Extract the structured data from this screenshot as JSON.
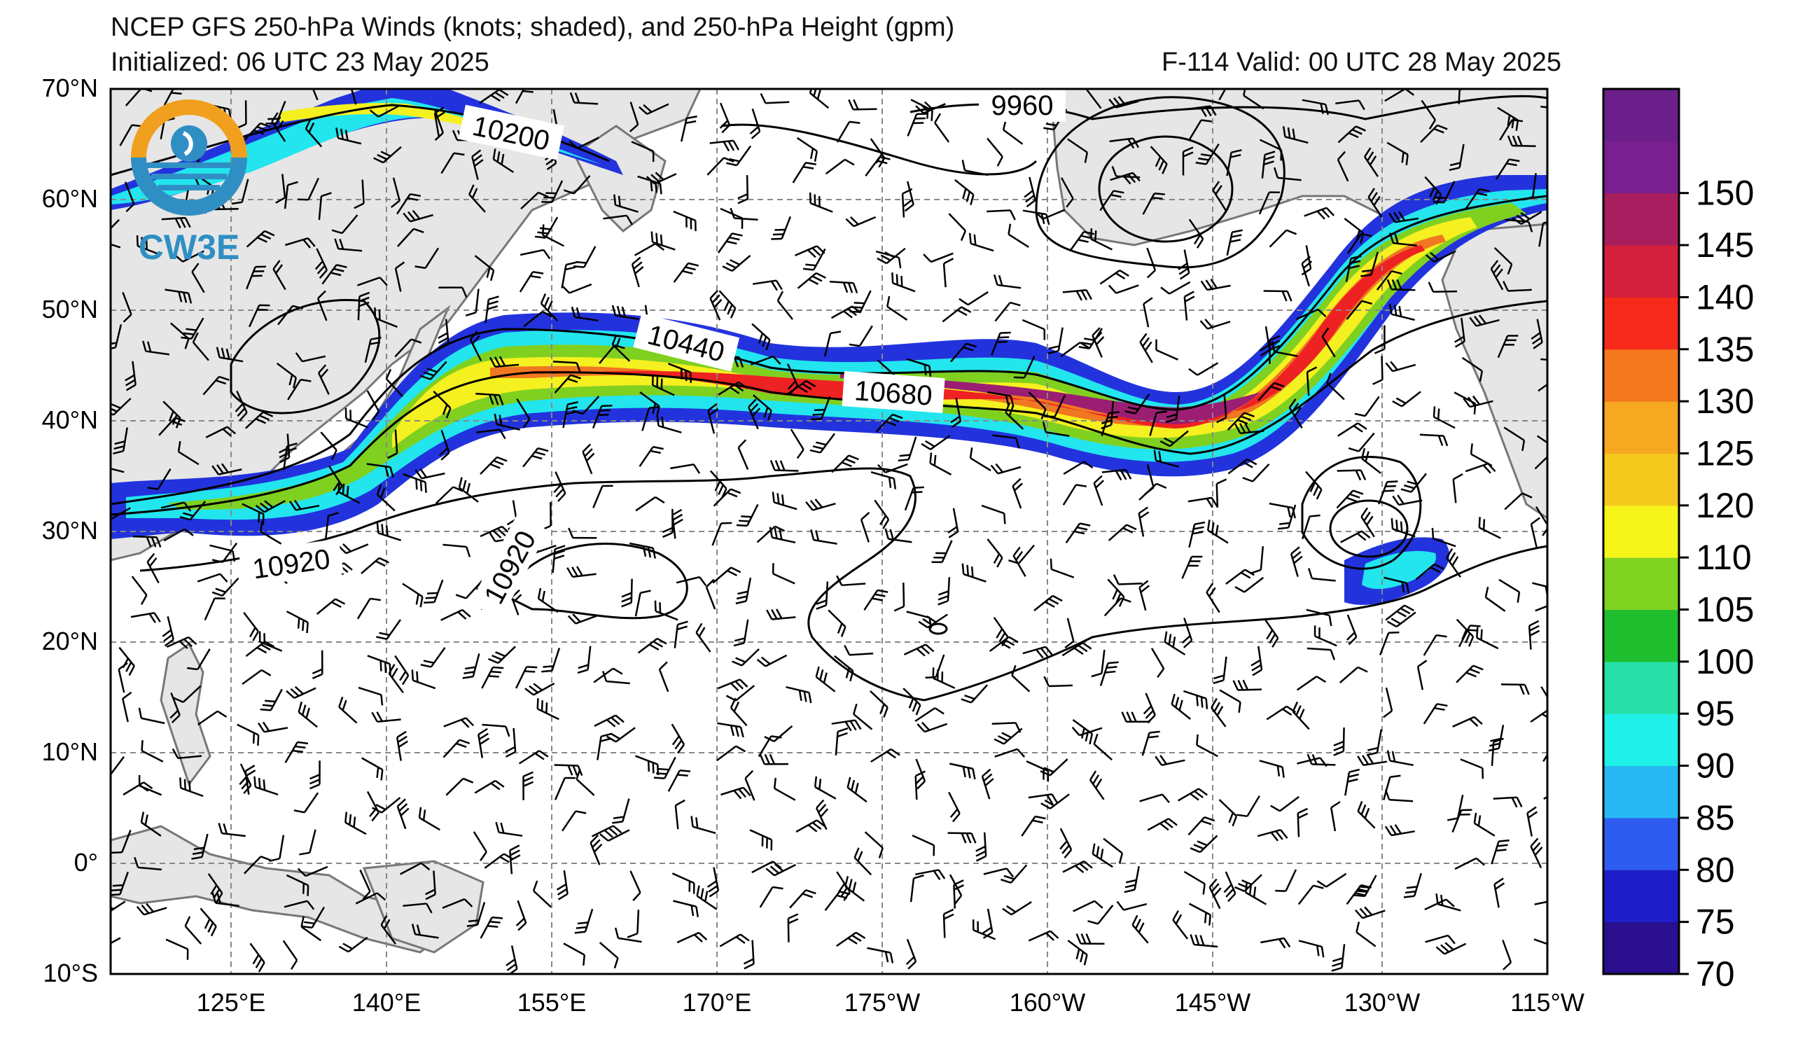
{
  "header": {
    "title": "NCEP GFS 250-hPa Winds (knots; shaded), and 250-hPa Height (gpm)",
    "initialized": "Initialized: 06 UTC 23 May 2025",
    "valid": "F-114  Valid: 00 UTC 28 May 2025"
  },
  "logo": {
    "text": "CW3E",
    "icon": "cw3e-logo-icon"
  },
  "map": {
    "lat_labels": [
      "70°N",
      "60°N",
      "50°N",
      "40°N",
      "30°N",
      "20°N",
      "10°N",
      "0°",
      "10°S"
    ],
    "lon_labels": [
      "125°E",
      "140°E",
      "155°E",
      "170°E",
      "175°W",
      "160°W",
      "145°W",
      "130°W",
      "115°W"
    ],
    "contour_labels": [
      "10200",
      "9960",
      "10440",
      "10680",
      "10920",
      "10920"
    ],
    "grid": "dashed"
  },
  "colorbar": {
    "labels": [
      "150",
      "145",
      "140",
      "135",
      "130",
      "125",
      "120",
      "110",
      "105",
      "100",
      "95",
      "90",
      "85",
      "80",
      "75",
      "70"
    ],
    "colors": [
      "#2a0f8e",
      "#1e1ec8",
      "#2f5cf0",
      "#27b8f3",
      "#1ff0e8",
      "#27e0a8",
      "#1fbe2f",
      "#7fd21f",
      "#f5f51a",
      "#f5c81e",
      "#f5a820",
      "#f5781f",
      "#f52a1a",
      "#d4203c",
      "#a81e5e",
      "#7a1f8f",
      "#6a1f8a"
    ],
    "units": "knots"
  },
  "wind_speed_colors": [
    "#2233dd",
    "#2a8cf0",
    "#22e5ee",
    "#22c060",
    "#80d020",
    "#f5f020",
    "#f5b820",
    "#f07820",
    "#ee2222",
    "#9b1e72"
  ]
}
